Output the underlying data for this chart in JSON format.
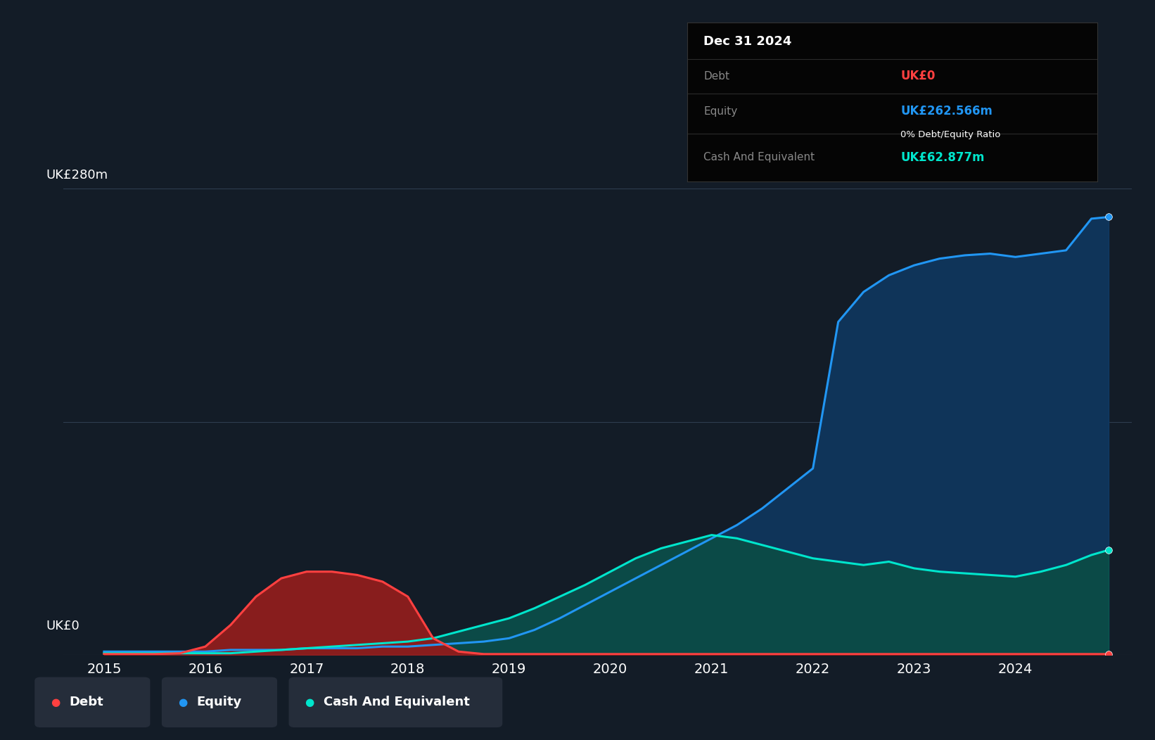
{
  "bg_color": "#131c27",
  "plot_bg_color": "#131c27",
  "grid_color": "#2e3d4f",
  "ylabel": "UK£280m",
  "y0label": "UK£0",
  "ylim": [
    0,
    280
  ],
  "years": [
    2015.0,
    2015.25,
    2015.5,
    2015.75,
    2016.0,
    2016.25,
    2016.5,
    2016.75,
    2017.0,
    2017.25,
    2017.5,
    2017.75,
    2018.0,
    2018.25,
    2018.5,
    2018.75,
    2019.0,
    2019.25,
    2019.5,
    2019.75,
    2020.0,
    2020.25,
    2020.5,
    2020.75,
    2021.0,
    2021.25,
    2021.5,
    2021.75,
    2022.0,
    2022.25,
    2022.5,
    2022.75,
    2023.0,
    2023.25,
    2023.5,
    2023.75,
    2024.0,
    2024.25,
    2024.5,
    2024.75,
    2024.92
  ],
  "debt": [
    0.5,
    0.5,
    0.5,
    1,
    5,
    18,
    35,
    46,
    50,
    50,
    48,
    44,
    35,
    10,
    2,
    0.5,
    0.5,
    0.5,
    0.5,
    0.5,
    0.5,
    0.5,
    0.5,
    0.5,
    0.5,
    0.5,
    0.5,
    0.5,
    0.5,
    0.5,
    0.5,
    0.5,
    0.5,
    0.5,
    0.5,
    0.5,
    0.5,
    0.5,
    0.5,
    0.5,
    0.5
  ],
  "equity": [
    2,
    2,
    2,
    2,
    2,
    3,
    3,
    3,
    4,
    4,
    4,
    5,
    5,
    6,
    7,
    8,
    10,
    15,
    22,
    30,
    38,
    46,
    54,
    62,
    70,
    78,
    88,
    100,
    112,
    200,
    218,
    228,
    234,
    238,
    240,
    241,
    239,
    241,
    243,
    262,
    263
  ],
  "cash": [
    1,
    1,
    1,
    1,
    1,
    1,
    2,
    3,
    4,
    5,
    6,
    7,
    8,
    10,
    14,
    18,
    22,
    28,
    35,
    42,
    50,
    58,
    64,
    68,
    72,
    70,
    66,
    62,
    58,
    56,
    54,
    56,
    52,
    50,
    49,
    48,
    47,
    50,
    54,
    60,
    63
  ],
  "debt_color": "#ff4040",
  "equity_color": "#2196f3",
  "cash_color": "#00e5cc",
  "debt_fill": "#6b1515",
  "equity_fill": "#0d2744",
  "cash_fill": "#0d3535",
  "xlim_left": 2014.6,
  "xlim_right": 2025.15,
  "xticks": [
    2015,
    2016,
    2017,
    2018,
    2019,
    2020,
    2021,
    2022,
    2023,
    2024
  ],
  "tooltip_title": "Dec 31 2024",
  "tooltip_debt_label": "Debt",
  "tooltip_debt_value": "UK£0",
  "tooltip_equity_label": "Equity",
  "tooltip_equity_value": "UK£262.566m",
  "tooltip_ratio": "0% Debt/Equity Ratio",
  "tooltip_cash_label": "Cash And Equivalent",
  "tooltip_cash_value": "UK£62.877m",
  "legend_items": [
    "Debt",
    "Equity",
    "Cash And Equivalent"
  ],
  "legend_colors": [
    "#ff4040",
    "#2196f3",
    "#00e5cc"
  ]
}
